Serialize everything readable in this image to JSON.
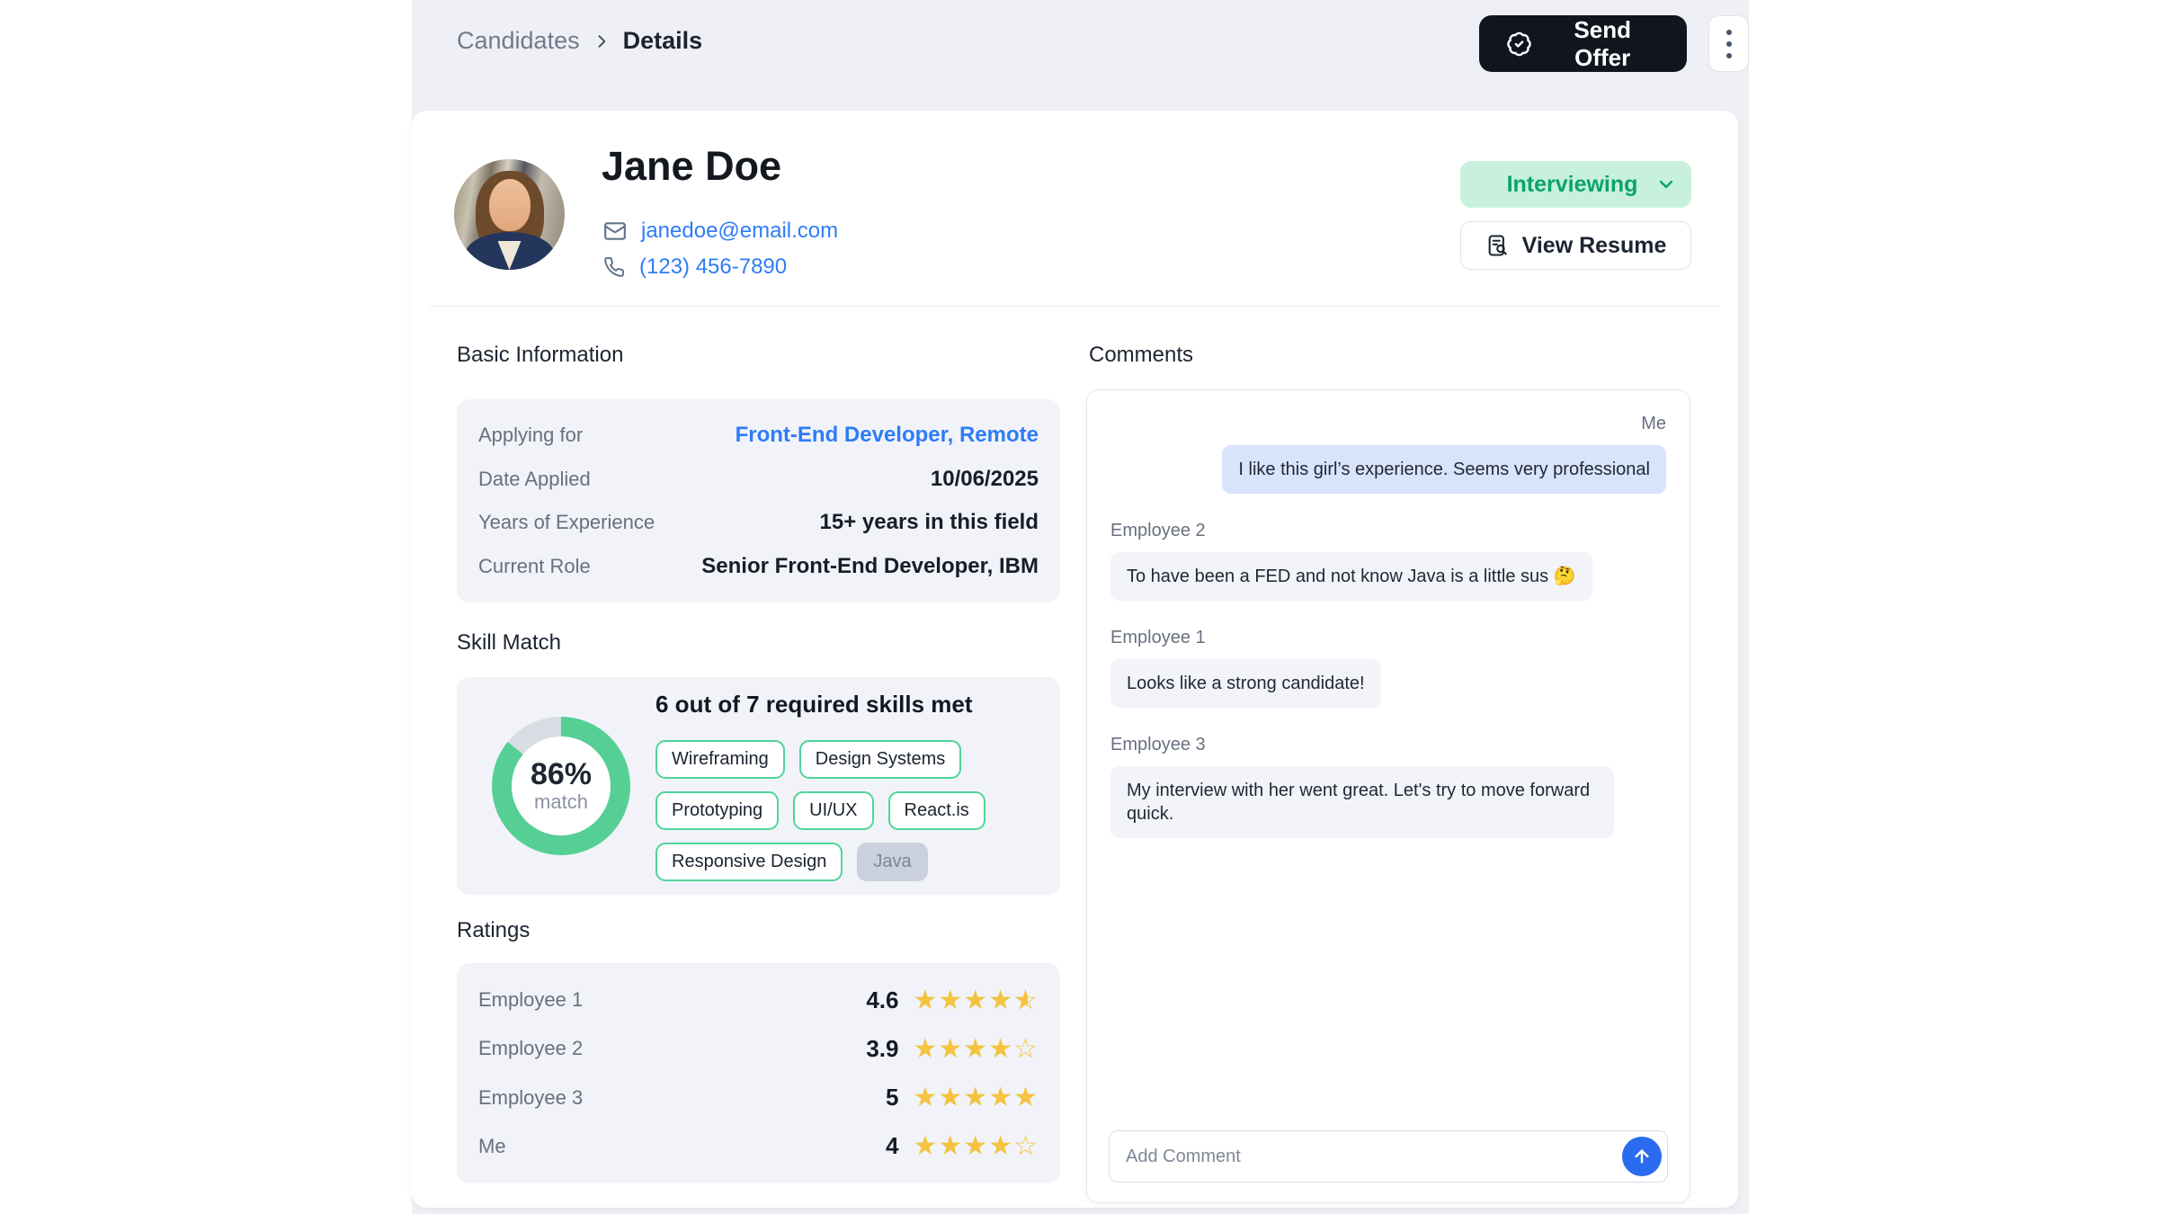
{
  "header": {
    "breadcrumb": {
      "parent": "Candidates",
      "current": "Details"
    },
    "send_offer_label": "Send Offer"
  },
  "profile": {
    "name": "Jane Doe",
    "email": "janedoe@email.com",
    "phone": "(123) 456-7890",
    "status": "Interviewing",
    "view_resume_label": "View Resume"
  },
  "basic_info": {
    "title": "Basic Information",
    "rows": [
      {
        "label": "Applying for",
        "value": "Front-End Developer, Remote",
        "link": true
      },
      {
        "label": "Date Applied",
        "value": "10/06/2025",
        "link": false
      },
      {
        "label": "Years of Experience",
        "value": "15+ years in this field",
        "link": false
      },
      {
        "label": "Current Role",
        "value": "Senior Front-End Developer, IBM",
        "link": false
      }
    ]
  },
  "skill_match": {
    "title": "Skill Match",
    "percent": 86,
    "percent_label": "86%",
    "match_label": "match",
    "headline": "6 out of 7 required skills met",
    "skills": [
      {
        "label": "Wireframing",
        "matched": true
      },
      {
        "label": "Design Systems",
        "matched": true
      },
      {
        "label": "Prototyping",
        "matched": true
      },
      {
        "label": "UI/UX",
        "matched": true
      },
      {
        "label": "React.is",
        "matched": true
      },
      {
        "label": "Responsive Design",
        "matched": true
      },
      {
        "label": "Java",
        "matched": false
      }
    ]
  },
  "ratings": {
    "title": "Ratings",
    "rows": [
      {
        "name": "Employee 1",
        "value": "4.6",
        "stars": 4.5
      },
      {
        "name": "Employee 2",
        "value": "3.9",
        "stars": 4
      },
      {
        "name": "Employee 3",
        "value": "5",
        "stars": 5
      },
      {
        "name": "Me",
        "value": "4",
        "stars": 4
      }
    ]
  },
  "comments": {
    "title": "Comments",
    "messages": [
      {
        "author": "Me",
        "side": "right",
        "text": "I like this girl’s experience. Seems very professional"
      },
      {
        "author": "Employee 2",
        "side": "left",
        "text": "To have been a FED and not know Java is a little sus 🤔"
      },
      {
        "author": "Employee 1",
        "side": "left",
        "text": "Looks like a strong candidate!"
      },
      {
        "author": "Employee 3",
        "side": "left",
        "text": "My interview with her went great. Let's try to move forward quick."
      }
    ],
    "input_placeholder": "Add Comment"
  },
  "colors": {
    "column_bg": "#eef0f6",
    "accent_blue": "#2e7cf6",
    "status_green_text": "#0aa36c",
    "status_green_bg": "#c7f1dd",
    "chip_border_green": "#4fd598",
    "donut_green": "#56cf95",
    "donut_track": "#d8dce3",
    "star": "#f4c33f",
    "send_offer_bg": "#10151f",
    "me_bubble": "#d9e4fc",
    "other_bubble": "#f2f4fa"
  }
}
